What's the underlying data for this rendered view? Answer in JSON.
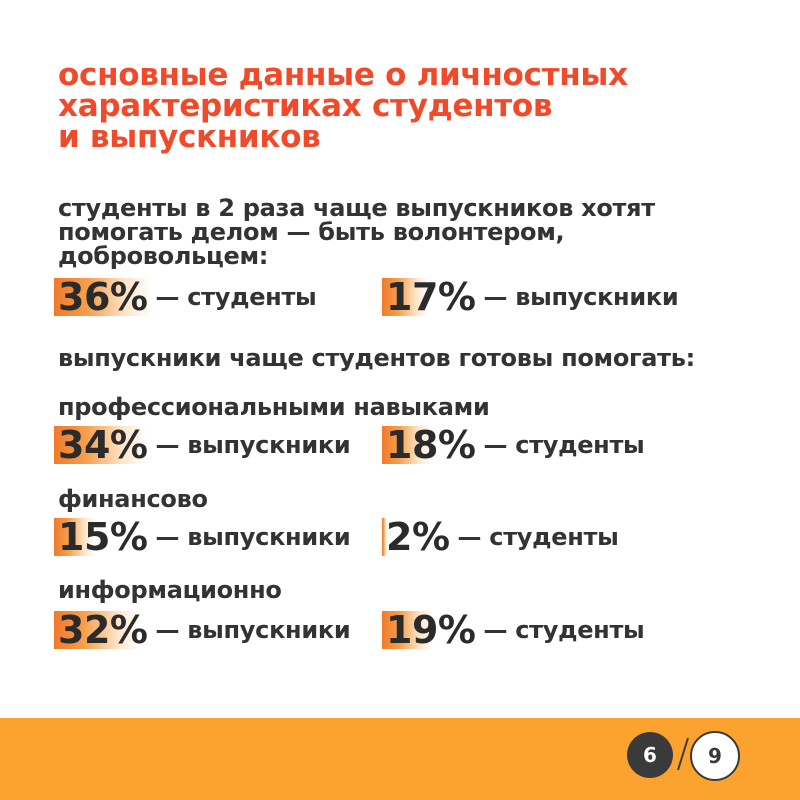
{
  "title": {
    "lines": [
      "основные данные о личностных",
      "характеристиках студентов",
      "и выпускников"
    ]
  },
  "intro": {
    "lines": [
      "студенты в 2 раза чаще выпускников хотят",
      "помогать делом — быть волонтером,",
      "добровольцем:"
    ]
  },
  "volunteer": [
    {
      "value": "36%",
      "label": "— студенты",
      "fill": 0.36
    },
    {
      "value": "17%",
      "label": "— выпускники",
      "fill": 0.17
    }
  ],
  "graduates_more": "выпускники чаще студентов готовы помогать:",
  "sections": [
    {
      "heading": "профессиональными навыками",
      "stats": [
        {
          "value": "34%",
          "label": "— выпускники",
          "fill": 0.34
        },
        {
          "value": "18%",
          "label": "— студенты",
          "fill": 0.18
        }
      ]
    },
    {
      "heading": "финансово",
      "stats": [
        {
          "value": "15%",
          "label": "— выпускники",
          "fill": 0.15
        },
        {
          "value": "2%",
          "label": "— студенты",
          "fill": 0.02
        }
      ]
    },
    {
      "heading": "информационно",
      "stats": [
        {
          "value": "32%",
          "label": "— выпускники",
          "fill": 0.32
        },
        {
          "value": "19%",
          "label": "— студенты",
          "fill": 0.19
        }
      ]
    }
  ],
  "pagination": {
    "current": "6",
    "total": "9"
  },
  "colors": {
    "accent": "#f04a2a",
    "footer": "#fca22e",
    "bar": "#f07a2c",
    "text": "#333333"
  }
}
